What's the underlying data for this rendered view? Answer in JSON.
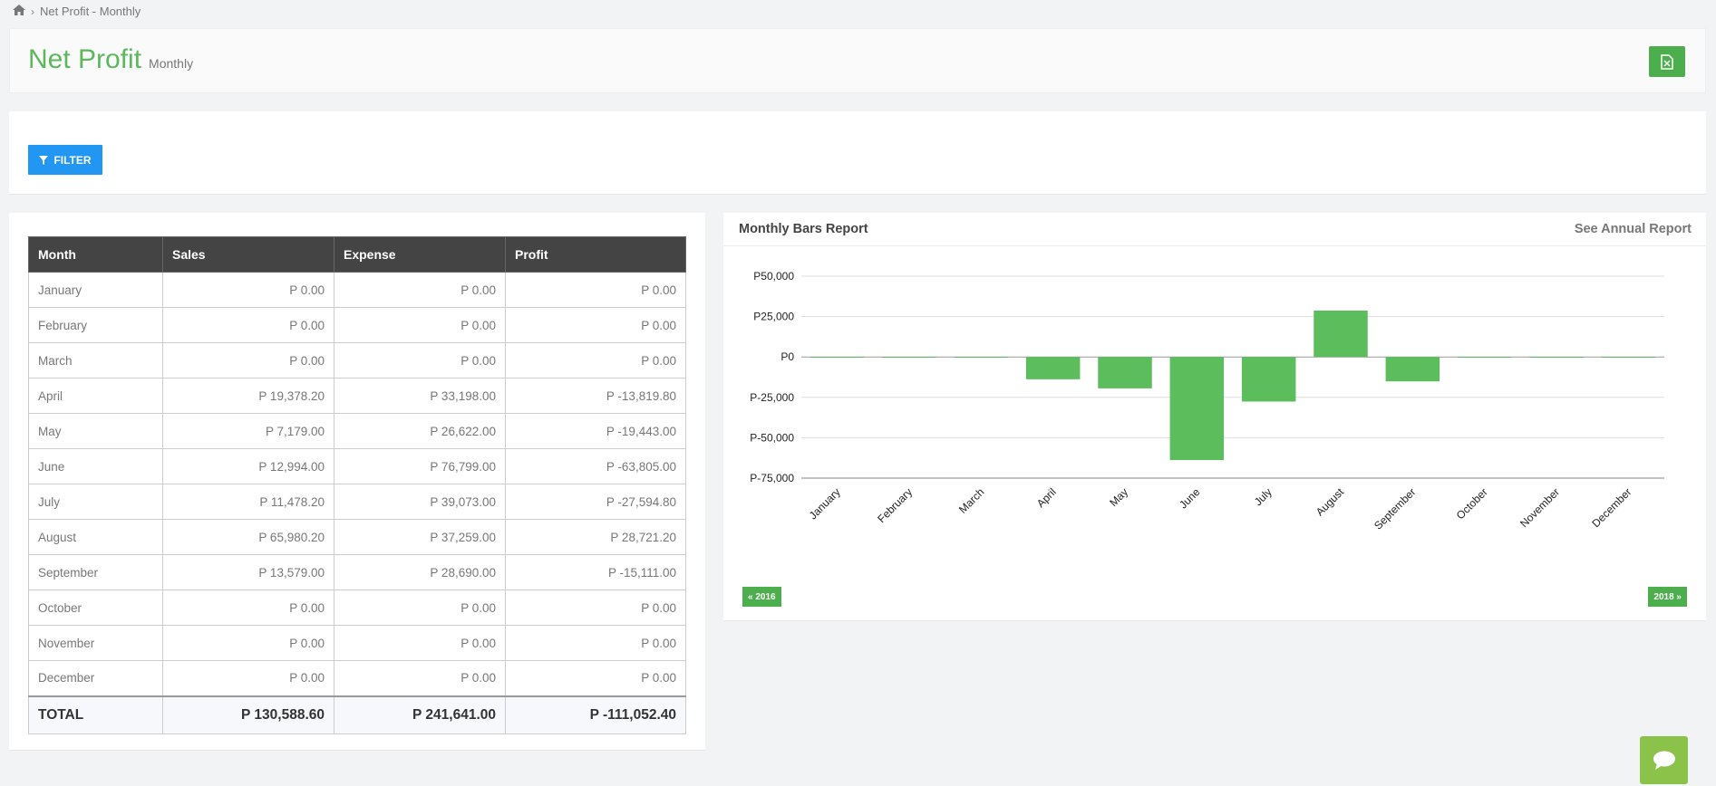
{
  "breadcrumb": {
    "current": "Net Profit - Monthly"
  },
  "header": {
    "title": "Net Profit",
    "subtitle": "Monthly",
    "export_icon": "excel-file-icon"
  },
  "filter": {
    "label": "FILTER",
    "icon": "filter-icon"
  },
  "table": {
    "columns": [
      "Month",
      "Sales",
      "Expense",
      "Profit"
    ],
    "rows": [
      [
        "January",
        "P 0.00",
        "P 0.00",
        "P 0.00"
      ],
      [
        "February",
        "P 0.00",
        "P 0.00",
        "P 0.00"
      ],
      [
        "March",
        "P 0.00",
        "P 0.00",
        "P 0.00"
      ],
      [
        "April",
        "P 19,378.20",
        "P 33,198.00",
        "P -13,819.80"
      ],
      [
        "May",
        "P 7,179.00",
        "P 26,622.00",
        "P -19,443.00"
      ],
      [
        "June",
        "P 12,994.00",
        "P 76,799.00",
        "P -63,805.00"
      ],
      [
        "July",
        "P 11,478.20",
        "P 39,073.00",
        "P -27,594.80"
      ],
      [
        "August",
        "P 65,980.20",
        "P 37,259.00",
        "P 28,721.20"
      ],
      [
        "September",
        "P 13,579.00",
        "P 28,690.00",
        "P -15,111.00"
      ],
      [
        "October",
        "P 0.00",
        "P 0.00",
        "P 0.00"
      ],
      [
        "November",
        "P 0.00",
        "P 0.00",
        "P 0.00"
      ],
      [
        "December",
        "P 0.00",
        "P 0.00",
        "P 0.00"
      ]
    ],
    "total": [
      "TOTAL",
      "P 130,588.60",
      "P 241,641.00",
      "P -111,052.40"
    ]
  },
  "chart_panel": {
    "title": "Monthly Bars Report",
    "annual_link": "See Annual Report",
    "prev_label": "« 2016",
    "next_label": "2018 »"
  },
  "chart_data": {
    "type": "bar",
    "categories": [
      "January",
      "February",
      "March",
      "April",
      "May",
      "June",
      "July",
      "August",
      "September",
      "October",
      "November",
      "December"
    ],
    "values": [
      0,
      0,
      0,
      -13819.8,
      -19443,
      -63805,
      -27594.8,
      28721.2,
      -15111,
      0,
      0,
      0
    ],
    "yticks": [
      50000,
      25000,
      0,
      -25000,
      -50000,
      -75000
    ],
    "ytick_labels": [
      "P50,000",
      "P25,000",
      "P0",
      "P-25,000",
      "P-50,000",
      "P-75,000"
    ],
    "ylim": [
      -75000,
      50000
    ],
    "bar_color": "#5cbd5c",
    "grid": true
  },
  "colors": {
    "accent": "#5cb85c",
    "filter": "#2196f3",
    "chat": "#8bc34a"
  },
  "chat": {
    "icon": "chat-bubble-icon"
  }
}
